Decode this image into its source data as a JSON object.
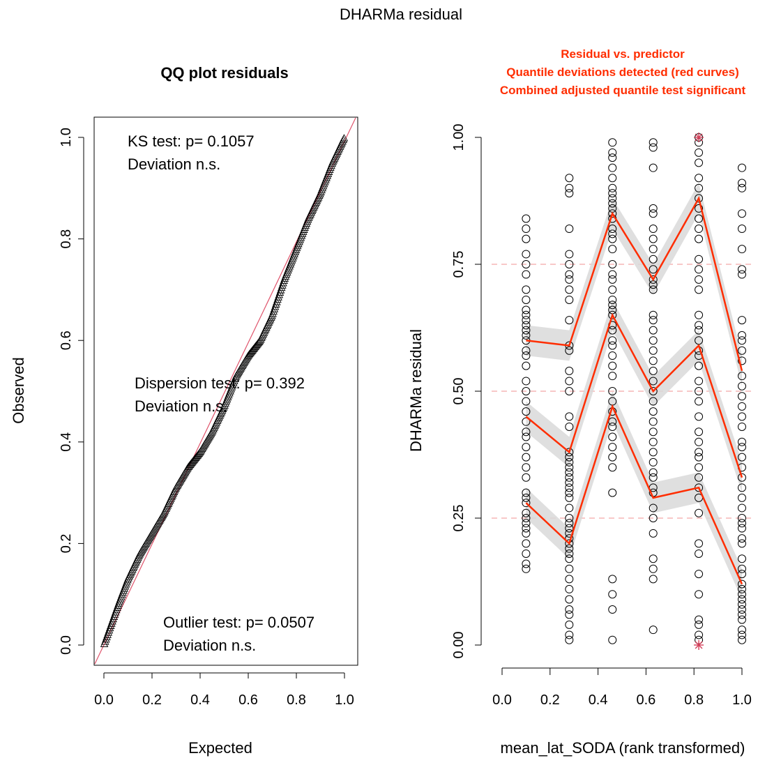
{
  "figure": {
    "title": "DHARMa residual"
  },
  "chart_data": [
    {
      "type": "scatter",
      "title": "QQ plot residuals",
      "xlabel": "Expected",
      "ylabel": "Observed",
      "xlim": [
        0,
        1
      ],
      "ylim": [
        0,
        1
      ],
      "x_ticks": [
        "0.0",
        "0.2",
        "0.4",
        "0.6",
        "0.8",
        "1.0"
      ],
      "y_ticks": [
        "0.0",
        "0.2",
        "0.4",
        "0.6",
        "0.8",
        "1.0"
      ],
      "reference_line": {
        "slope": 1,
        "intercept": 0,
        "color": "#df536b"
      },
      "series": [
        {
          "marker": "triangle",
          "curve": [
            [
              0.0,
              0.0
            ],
            [
              0.03,
              0.04
            ],
            [
              0.06,
              0.08
            ],
            [
              0.1,
              0.13
            ],
            [
              0.15,
              0.18
            ],
            [
              0.2,
              0.22
            ],
            [
              0.25,
              0.26
            ],
            [
              0.3,
              0.31
            ],
            [
              0.35,
              0.35
            ],
            [
              0.4,
              0.38
            ],
            [
              0.45,
              0.42
            ],
            [
              0.5,
              0.47
            ],
            [
              0.55,
              0.53
            ],
            [
              0.6,
              0.57
            ],
            [
              0.65,
              0.6
            ],
            [
              0.7,
              0.65
            ],
            [
              0.75,
              0.72
            ],
            [
              0.8,
              0.78
            ],
            [
              0.85,
              0.84
            ],
            [
              0.9,
              0.89
            ],
            [
              0.95,
              0.95
            ],
            [
              1.0,
              1.0
            ]
          ]
        }
      ],
      "annotations": [
        {
          "lines": [
            "KS test: p= 0.1057",
            "Deviation  n.s."
          ],
          "color": "#000000"
        },
        {
          "lines": [
            "Dispersion test: p= 0.392",
            "Deviation  n.s."
          ],
          "color": "#000000"
        },
        {
          "lines": [
            "Outlier test: p= 0.0507",
            "Deviation  n.s."
          ],
          "color": "#000000"
        }
      ]
    },
    {
      "type": "scatter",
      "title_lines": [
        "Residual vs. predictor",
        "Quantile deviations detected (red curves)",
        "Combined adjusted quantile test significant"
      ],
      "title_color": "#ff2d00",
      "xlabel": "mean_lat_SODA (rank transformed)",
      "ylabel": "DHARMa residual",
      "xlim": [
        0,
        1
      ],
      "ylim": [
        0,
        1
      ],
      "x_ticks": [
        "0.0",
        "0.2",
        "0.4",
        "0.6",
        "0.8",
        "1.0"
      ],
      "y_ticks": [
        "0.00",
        "0.25",
        "0.50",
        "0.75",
        "1.00"
      ],
      "reference_lines_y": [
        0.25,
        0.5,
        0.75
      ],
      "categories_x": [
        0.1,
        0.28,
        0.46,
        0.63,
        0.82,
        1.0
      ],
      "points": [
        {
          "x": 0.1,
          "y": [
            0.15,
            0.16,
            0.18,
            0.2,
            0.22,
            0.23,
            0.24,
            0.25,
            0.26,
            0.28,
            0.29,
            0.3,
            0.33,
            0.35,
            0.37,
            0.39,
            0.41,
            0.42,
            0.44,
            0.46,
            0.48,
            0.5,
            0.52,
            0.55,
            0.57,
            0.58,
            0.6,
            0.61,
            0.62,
            0.63,
            0.64,
            0.65,
            0.66,
            0.68,
            0.7,
            0.73,
            0.75,
            0.77,
            0.8,
            0.82,
            0.84
          ]
        },
        {
          "x": 0.28,
          "y": [
            0.01,
            0.02,
            0.04,
            0.06,
            0.07,
            0.09,
            0.11,
            0.13,
            0.15,
            0.17,
            0.18,
            0.19,
            0.2,
            0.21,
            0.22,
            0.23,
            0.24,
            0.25,
            0.27,
            0.29,
            0.3,
            0.31,
            0.32,
            0.33,
            0.34,
            0.35,
            0.36,
            0.37,
            0.38,
            0.43,
            0.45,
            0.5,
            0.52,
            0.54,
            0.58,
            0.59,
            0.64,
            0.68,
            0.7,
            0.72,
            0.73,
            0.75,
            0.77,
            0.82,
            0.89,
            0.9,
            0.92
          ]
        },
        {
          "x": 0.46,
          "y": [
            0.01,
            0.07,
            0.1,
            0.13,
            0.3,
            0.35,
            0.37,
            0.39,
            0.41,
            0.43,
            0.44,
            0.46,
            0.48,
            0.5,
            0.53,
            0.55,
            0.57,
            0.59,
            0.6,
            0.62,
            0.63,
            0.65,
            0.66,
            0.67,
            0.68,
            0.7,
            0.72,
            0.73,
            0.75,
            0.78,
            0.8,
            0.81,
            0.82,
            0.84,
            0.85,
            0.86,
            0.87,
            0.88,
            0.89,
            0.9,
            0.92,
            0.94,
            0.96,
            0.97,
            0.99
          ]
        },
        {
          "x": 0.63,
          "y": [
            0.03,
            0.13,
            0.15,
            0.17,
            0.22,
            0.25,
            0.27,
            0.3,
            0.31,
            0.33,
            0.34,
            0.36,
            0.38,
            0.4,
            0.42,
            0.44,
            0.46,
            0.48,
            0.5,
            0.52,
            0.54,
            0.56,
            0.58,
            0.6,
            0.62,
            0.64,
            0.65,
            0.7,
            0.71,
            0.72,
            0.74,
            0.76,
            0.78,
            0.8,
            0.82,
            0.85,
            0.86,
            0.94,
            0.98,
            0.99
          ]
        },
        {
          "x": 0.82,
          "y": [
            0.01,
            0.02,
            0.04,
            0.05,
            0.1,
            0.14,
            0.18,
            0.2,
            0.26,
            0.29,
            0.31,
            0.33,
            0.35,
            0.37,
            0.38,
            0.4,
            0.42,
            0.45,
            0.48,
            0.5,
            0.52,
            0.55,
            0.57,
            0.58,
            0.6,
            0.62,
            0.63,
            0.65,
            0.7,
            0.72,
            0.74,
            0.76,
            0.8,
            0.82,
            0.84,
            0.86,
            0.88,
            0.9,
            0.92,
            0.95,
            0.97,
            0.99,
            1.0
          ]
        },
        {
          "x": 1.0,
          "y": [
            0.01,
            0.02,
            0.03,
            0.05,
            0.06,
            0.07,
            0.08,
            0.09,
            0.1,
            0.11,
            0.12,
            0.14,
            0.15,
            0.17,
            0.2,
            0.21,
            0.23,
            0.24,
            0.25,
            0.27,
            0.29,
            0.31,
            0.33,
            0.35,
            0.37,
            0.39,
            0.4,
            0.43,
            0.45,
            0.47,
            0.49,
            0.51,
            0.53,
            0.56,
            0.58,
            0.6,
            0.61,
            0.64,
            0.73,
            0.74,
            0.78,
            0.82,
            0.85,
            0.9,
            0.91,
            0.94
          ]
        }
      ],
      "outliers": [
        {
          "x": 0.82,
          "y": 1.0
        },
        {
          "x": 0.82,
          "y": 0.0
        }
      ],
      "quantile_curves": [
        {
          "name": "0.25",
          "values": [
            0.28,
            0.2,
            0.47,
            0.29,
            0.31,
            0.12
          ]
        },
        {
          "name": "0.5",
          "values": [
            0.45,
            0.38,
            0.65,
            0.5,
            0.59,
            0.33
          ]
        },
        {
          "name": "0.75",
          "values": [
            0.6,
            0.59,
            0.85,
            0.72,
            0.88,
            0.54
          ]
        }
      ],
      "quantile_band_halfwidth": 0.03,
      "curve_color": "#ff2d00"
    }
  ]
}
